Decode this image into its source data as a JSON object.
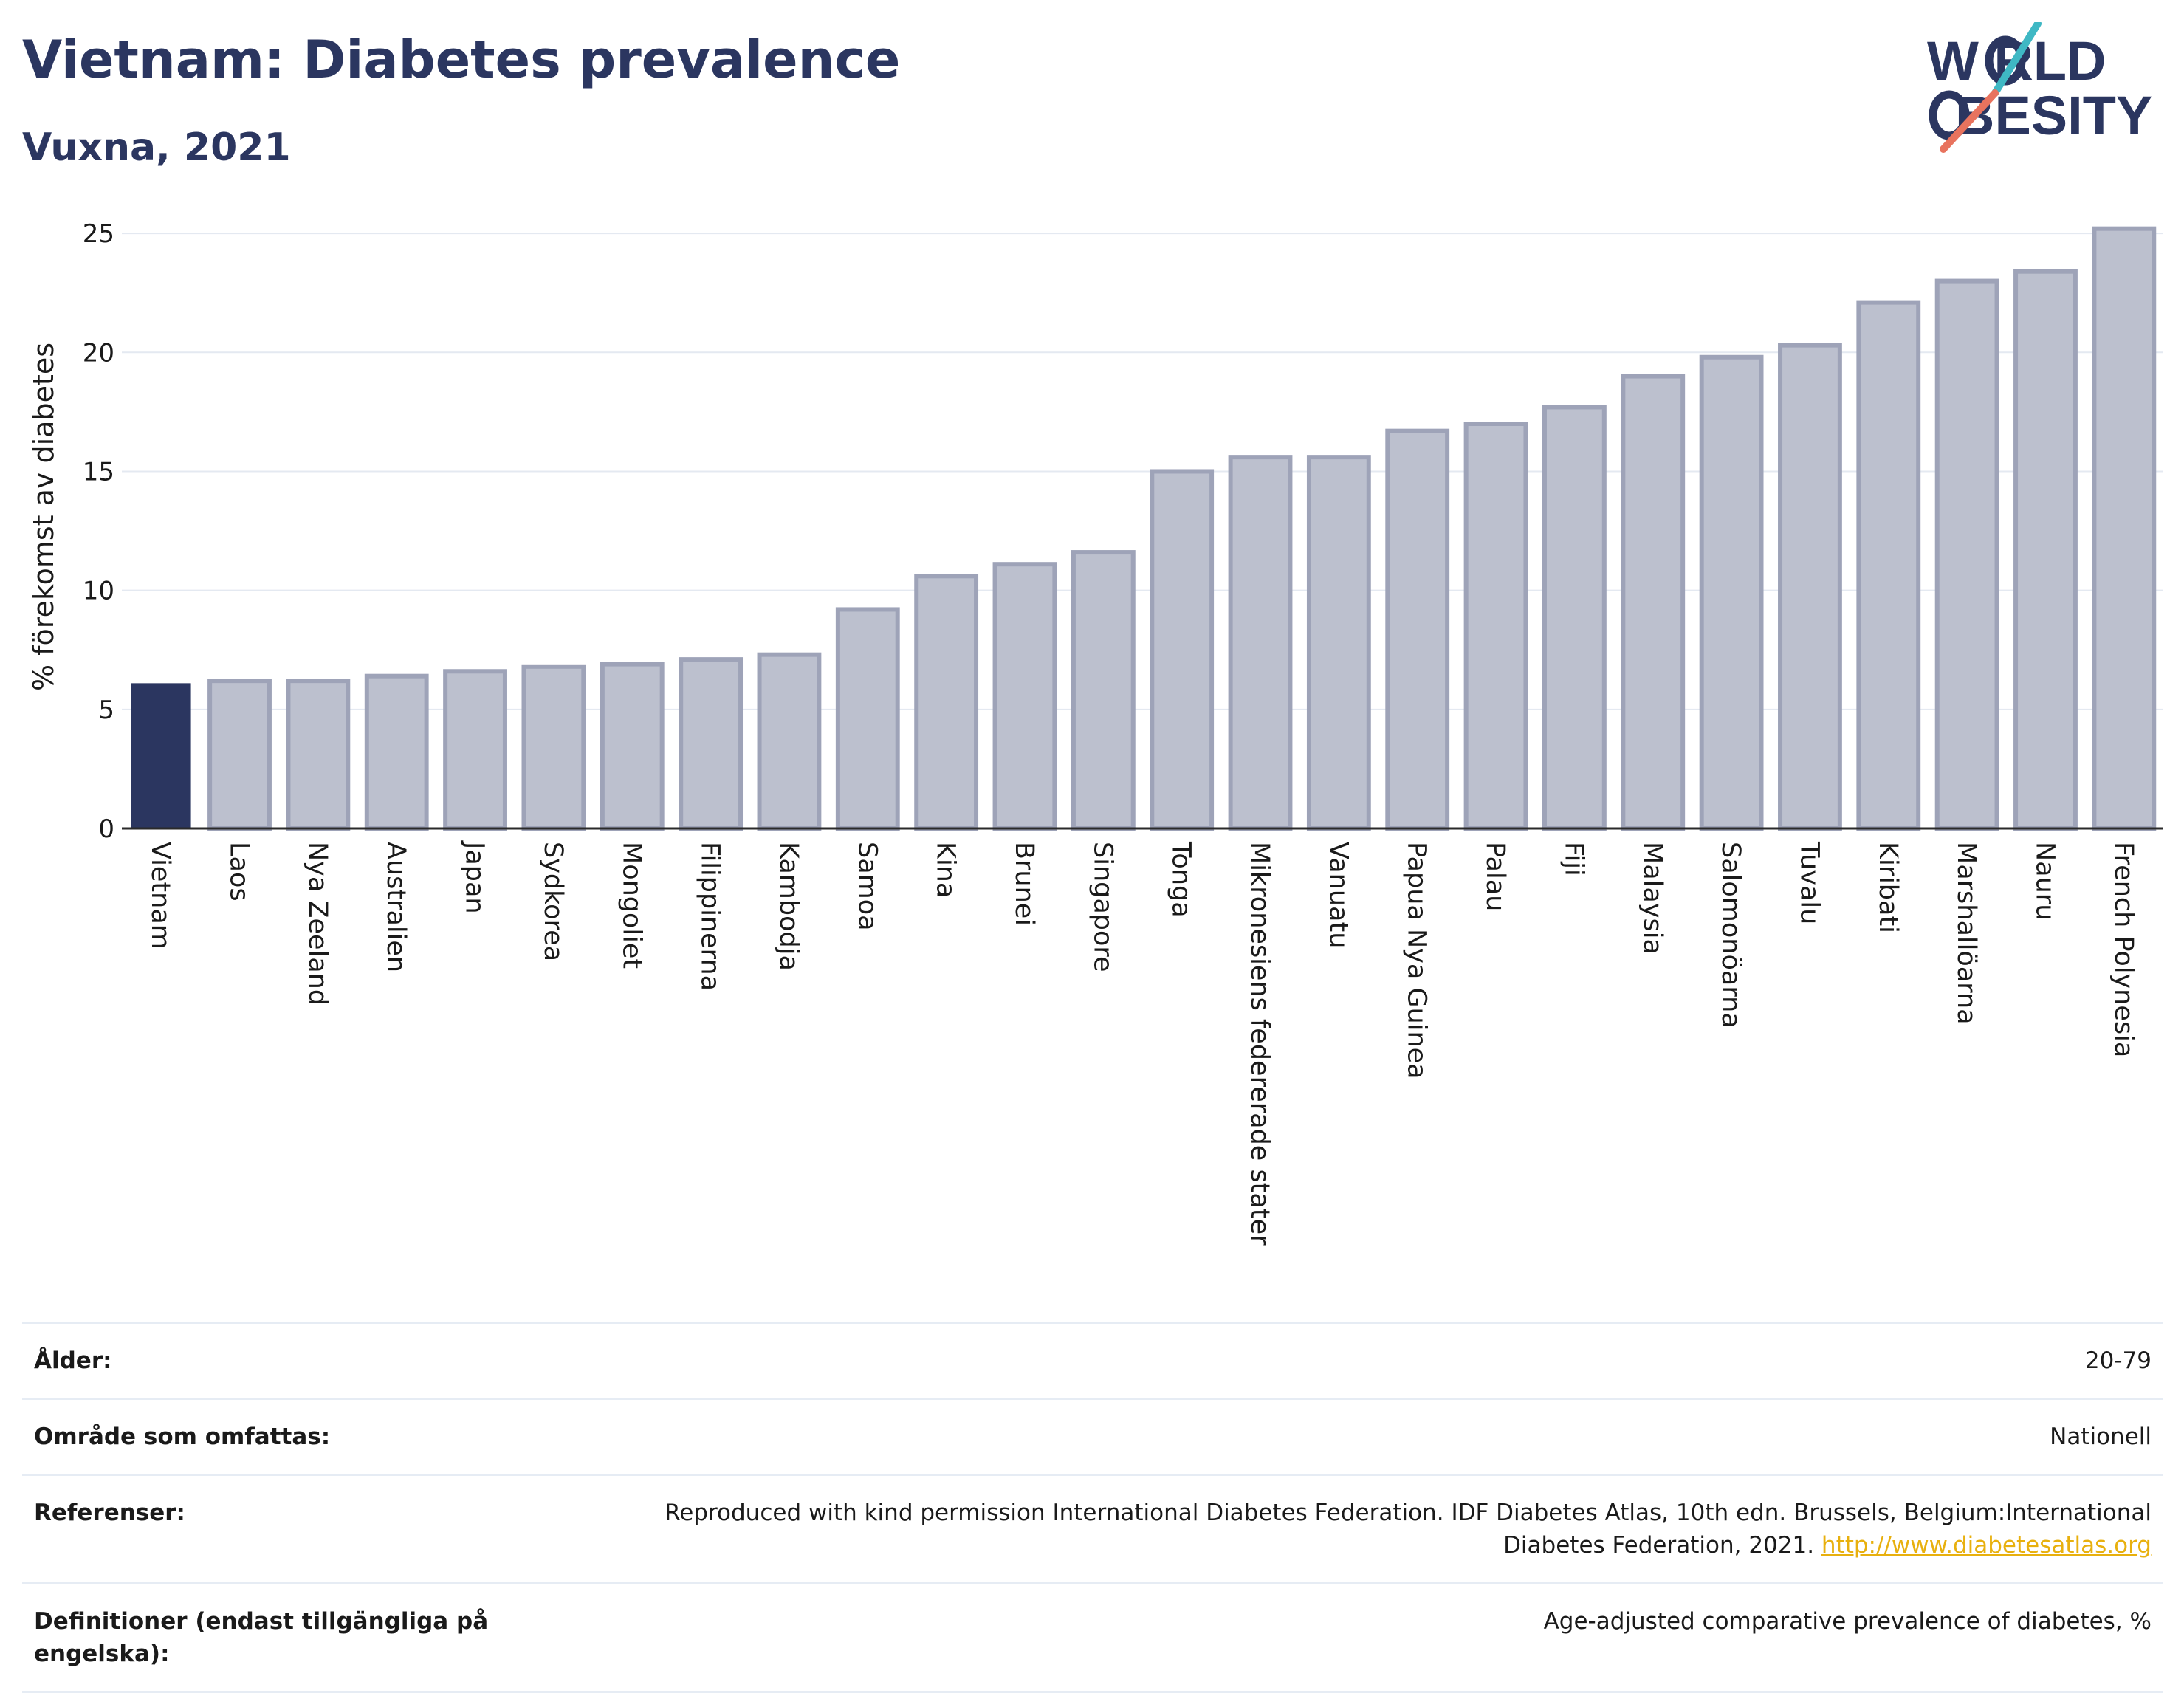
{
  "header": {
    "title": "Vietnam: Diabetes prevalence",
    "subtitle": "Vuxna, 2021"
  },
  "logo": {
    "line1": "W RLD",
    "line2": "BESITY",
    "colors": {
      "navy": "#2b3660",
      "teal": "#3fb8c4",
      "coral": "#e8735e"
    }
  },
  "chart_data": {
    "type": "bar",
    "ylabel": "% förekomst av diabetes",
    "ylim": [
      0,
      25.5
    ],
    "yticks": [
      0,
      5,
      10,
      15,
      20,
      25
    ],
    "grid": true,
    "highlight_index": 0,
    "colors": {
      "highlight": "#2b3660",
      "bar": "#bcc0ce",
      "bar_edge": "#9ea3b8"
    },
    "categories": [
      "Vietnam",
      "Laos",
      "Nya Zeeland",
      "Australien",
      "Japan",
      "Sydkorea",
      "Mongoliet",
      "Filippinerna",
      "Kambodja",
      "Samoa",
      "Kina",
      "Brunei",
      "Singapore",
      "Tonga",
      "Mikronesiens federerade stater",
      "Vanuatu",
      "Papua Nya Guinea",
      "Palau",
      "Fiji",
      "Malaysia",
      "Salomonöarna",
      "Tuvalu",
      "Kiribati",
      "Marshallöarna",
      "Nauru",
      "French Polynesia"
    ],
    "values": [
      6.1,
      6.2,
      6.2,
      6.4,
      6.6,
      6.8,
      6.9,
      7.1,
      7.3,
      9.2,
      10.6,
      11.1,
      11.6,
      15.0,
      15.6,
      15.6,
      16.7,
      17.0,
      17.7,
      19.0,
      19.8,
      20.3,
      22.1,
      23.0,
      23.4,
      25.2
    ]
  },
  "info": {
    "age_label": "Ålder:",
    "age_value": "20-79",
    "area_label": "Område som omfattas:",
    "area_value": "Nationell",
    "ref_label": "Referenser:",
    "ref_line1": "Reproduced with kind permission International Diabetes Federation.  IDF Diabetes Atlas, 10th edn. Brussels, Belgium:International",
    "ref_line2": "Diabetes Federation, 2021.",
    "ref_link": "http://www.diabetesatlas.org",
    "def_label": "Definitioner (endast tillgängliga på engelska):",
    "def_value": "Age-adjusted comparative prevalence of diabetes, %"
  }
}
